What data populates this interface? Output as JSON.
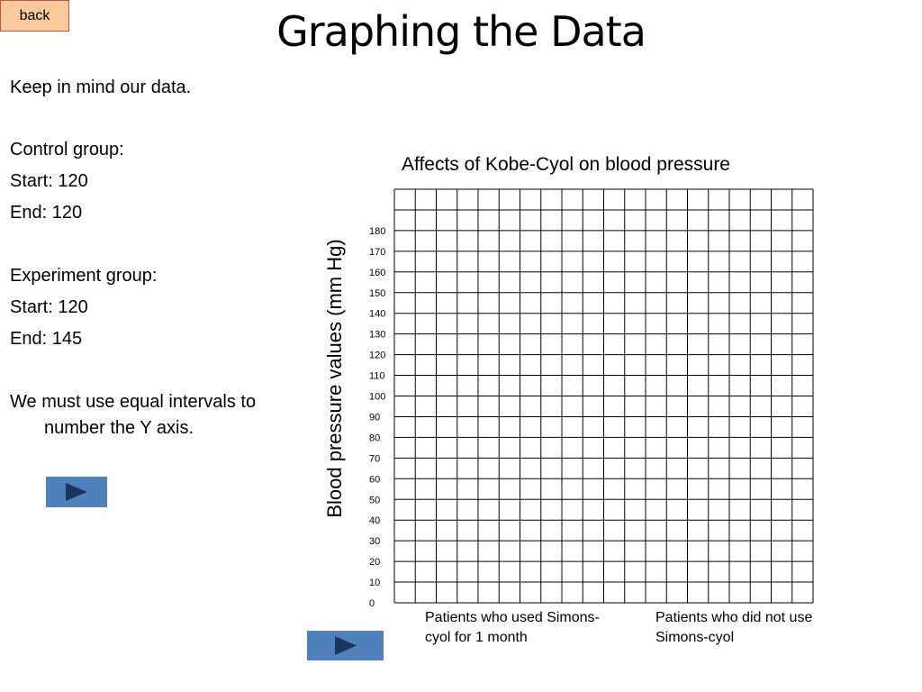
{
  "header": {
    "back": "back",
    "title": "Graphing the Data"
  },
  "notes": {
    "intro": "Keep in mind our data.",
    "control_heading": "Control group:",
    "control_start": "Start: 120",
    "control_end": "End: 120",
    "experiment_heading": "Experiment group:",
    "experiment_start": "Start: 120",
    "experiment_end": "End: 145",
    "reminder": "We must use equal intervals to number the Y axis."
  },
  "graph": {
    "title": "Affects of Kobe-Cyol on blood pressure",
    "y_label": "Blood pressure values (mm  Hg)",
    "y_numbers": [
      0,
      10,
      20,
      30,
      40,
      50,
      60,
      70,
      80,
      90,
      100,
      110,
      120,
      130,
      140,
      150,
      160,
      170,
      180
    ],
    "group_1": "Patients who used Simons-cyol for 1 month",
    "group_2": "Patients who did not use Simons-cyol"
  }
}
